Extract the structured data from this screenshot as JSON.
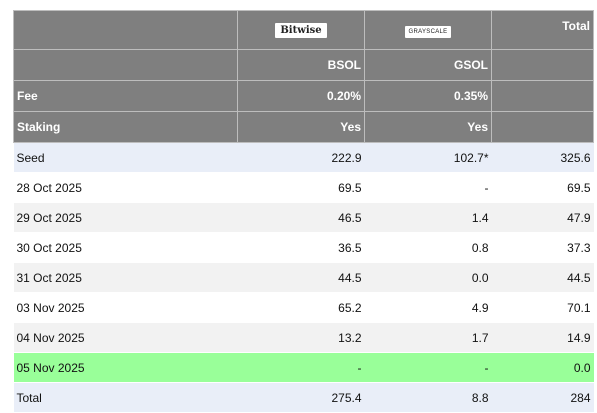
{
  "header": {
    "logos": [
      {
        "name": "Bitwise",
        "text": "Bitwise"
      },
      {
        "name": "Grayscale",
        "text": "GRAYSCALE"
      }
    ],
    "total_label": "Total",
    "tickers": [
      "BSOL",
      "GSOL"
    ],
    "fee_label": "Fee",
    "fees": [
      "0.20%",
      "0.35%"
    ],
    "staking_label": "Staking",
    "staking": [
      "Yes",
      "Yes"
    ]
  },
  "rows": [
    {
      "label": "Seed",
      "bsol": "222.9",
      "gsol": "102.7*",
      "total": "325.6",
      "style": "blue"
    },
    {
      "label": "28 Oct 2025",
      "bsol": "69.5",
      "gsol": "-",
      "total": "69.5",
      "style": "white"
    },
    {
      "label": "29 Oct 2025",
      "bsol": "46.5",
      "gsol": "1.4",
      "total": "47.9",
      "style": "grey"
    },
    {
      "label": "30 Oct 2025",
      "bsol": "36.5",
      "gsol": "0.8",
      "total": "37.3",
      "style": "white"
    },
    {
      "label": "31 Oct 2025",
      "bsol": "44.5",
      "gsol": "0.0",
      "total": "44.5",
      "style": "grey"
    },
    {
      "label": "03 Nov 2025",
      "bsol": "65.2",
      "gsol": "4.9",
      "total": "70.1",
      "style": "white"
    },
    {
      "label": "04 Nov 2025",
      "bsol": "13.2",
      "gsol": "1.7",
      "total": "14.9",
      "style": "grey"
    },
    {
      "label": "05 Nov 2025",
      "bsol": "-",
      "gsol": "-",
      "total": "0.0",
      "style": "green"
    },
    {
      "label": "Total",
      "bsol": "275.4",
      "gsol": "8.8",
      "total": "284",
      "style": "blue"
    }
  ]
}
